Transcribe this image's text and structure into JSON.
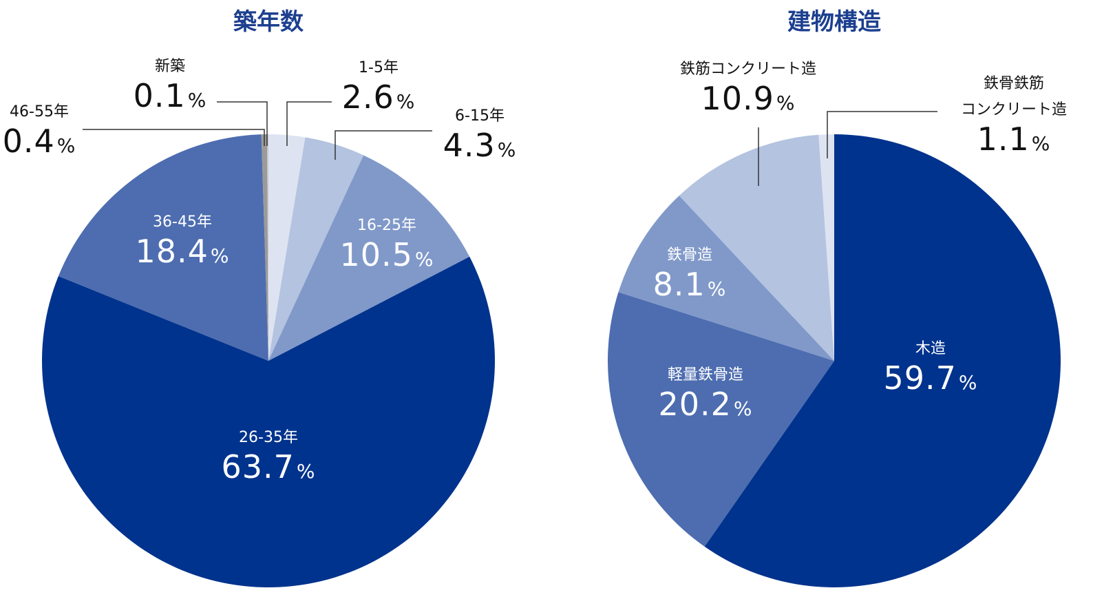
{
  "chart_data": [
    {
      "type": "pie",
      "title": "築年数",
      "unit": "%",
      "start": "top",
      "direction": "clockwise",
      "slices": [
        {
          "label": "1-5年",
          "value": 2.6,
          "color": "#dde3f1"
        },
        {
          "label": "6-15年",
          "value": 4.3,
          "color": "#b3c3e0"
        },
        {
          "label": "16-25年",
          "value": 10.5,
          "color": "#8099c9"
        },
        {
          "label": "26-35年",
          "value": 63.7,
          "color": "#00338d"
        },
        {
          "label": "36-45年",
          "value": 18.4,
          "color": "#4d6db0"
        },
        {
          "label": "46-55年",
          "value": 0.4,
          "color": "#9a9a9a"
        },
        {
          "label": "新築",
          "value": 0.1,
          "color": "#c8c8c8"
        }
      ]
    },
    {
      "type": "pie",
      "title": "建物構造",
      "unit": "%",
      "start": "top",
      "direction": "clockwise",
      "slices": [
        {
          "label": "木造",
          "value": 59.7,
          "color": "#00338d"
        },
        {
          "label": "軽量鉄骨造",
          "value": 20.2,
          "color": "#4d6db0"
        },
        {
          "label": "鉄骨造",
          "value": 8.1,
          "color": "#8099c9"
        },
        {
          "label": "鉄筋コンクリート造",
          "value": 10.9,
          "color": "#b3c3e0"
        },
        {
          "label": "鉄骨鉄筋コンクリート造",
          "label_lines": [
            "鉄骨鉄筋",
            "コンクリート造"
          ],
          "value": 1.1,
          "color": "#dde3f1"
        }
      ]
    }
  ]
}
